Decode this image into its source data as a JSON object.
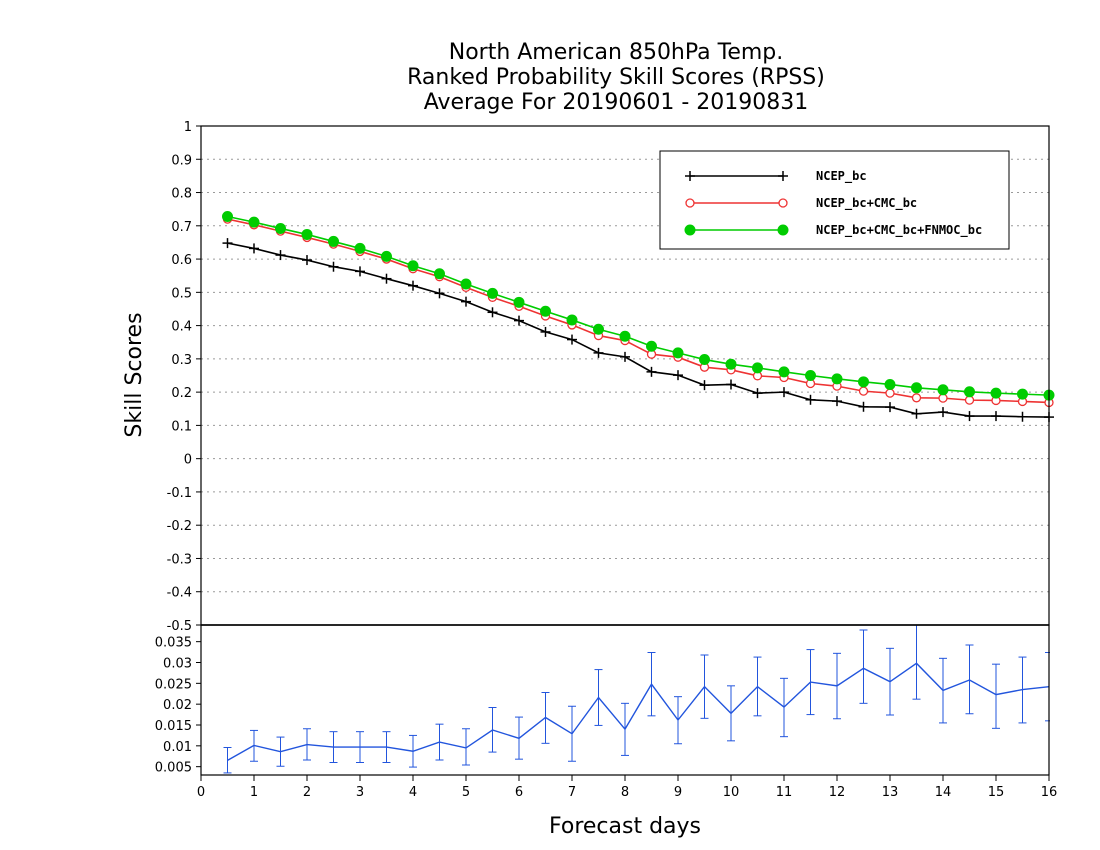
{
  "chart_data": [
    {
      "type": "line",
      "title_lines": [
        "North American 850hPa Temp.",
        "Ranked Probability Skill Scores (RPSS)",
        "Average For 20190601 - 20190831"
      ],
      "xlabel": "Forecast days",
      "ylabel": "Skill Scores",
      "xlim": [
        0,
        16
      ],
      "ylim": [
        -0.5,
        1
      ],
      "x_ticks": [
        "0",
        "1",
        "2",
        "3",
        "4",
        "5",
        "6",
        "7",
        "8",
        "9",
        "10",
        "11",
        "12",
        "13",
        "14",
        "15",
        "16"
      ],
      "y_ticks": [
        "-0.5",
        "-0.4",
        "-0.3",
        "-0.2",
        "-0.1",
        "0",
        "0.1",
        "0.2",
        "0.3",
        "0.4",
        "0.5",
        "0.6",
        "0.7",
        "0.8",
        "0.9",
        "1"
      ],
      "grid": true,
      "legend_position": "top-right",
      "x": [
        0.5,
        1,
        1.5,
        2,
        2.5,
        3,
        3.5,
        4,
        4.5,
        5,
        5.5,
        6,
        6.5,
        7,
        7.5,
        8,
        8.5,
        9,
        9.5,
        10,
        10.5,
        11,
        11.5,
        12,
        12.5,
        13,
        13.5,
        14,
        14.5,
        15,
        15.5,
        16
      ],
      "series": [
        {
          "name": "NCEP_bc",
          "color": "#000000",
          "marker": "plus",
          "values": [
            0.648,
            0.632,
            0.612,
            0.597,
            0.577,
            0.563,
            0.541,
            0.52,
            0.497,
            0.472,
            0.44,
            0.415,
            0.381,
            0.358,
            0.318,
            0.306,
            0.261,
            0.251,
            0.221,
            0.223,
            0.197,
            0.2,
            0.177,
            0.173,
            0.156,
            0.155,
            0.135,
            0.14,
            0.128,
            0.128,
            0.126,
            0.125
          ]
        },
        {
          "name": "NCEP_bc+CMC_bc",
          "color": "#ee3333",
          "marker": "open-circle",
          "values": [
            0.72,
            0.703,
            0.684,
            0.665,
            0.645,
            0.623,
            0.6,
            0.571,
            0.547,
            0.515,
            0.485,
            0.458,
            0.429,
            0.402,
            0.37,
            0.355,
            0.314,
            0.305,
            0.275,
            0.267,
            0.249,
            0.244,
            0.226,
            0.218,
            0.203,
            0.197,
            0.183,
            0.182,
            0.176,
            0.175,
            0.172,
            0.169
          ]
        },
        {
          "name": "NCEP_bc+CMC_bc+FNMOC_bc",
          "color": "#00cc00",
          "marker": "filled-circle",
          "values": [
            0.728,
            0.711,
            0.692,
            0.674,
            0.653,
            0.632,
            0.608,
            0.58,
            0.556,
            0.525,
            0.497,
            0.47,
            0.443,
            0.417,
            0.389,
            0.368,
            0.338,
            0.318,
            0.298,
            0.284,
            0.273,
            0.261,
            0.25,
            0.24,
            0.231,
            0.223,
            0.213,
            0.207,
            0.201,
            0.197,
            0.194,
            0.191
          ]
        }
      ]
    },
    {
      "type": "line",
      "xlim": [
        0,
        16
      ],
      "ylim": [
        0.003,
        0.039
      ],
      "y_ticks": [
        "0.005",
        "0.01",
        "0.015",
        "0.02",
        "0.025",
        "0.03",
        "0.035"
      ],
      "grid": false,
      "series": [
        {
          "color": "#2255dd",
          "x": [
            0.5,
            1,
            1.5,
            2,
            2.5,
            3,
            3.5,
            4,
            4.5,
            5,
            5.5,
            6,
            6.5,
            7,
            7.5,
            8,
            8.5,
            9,
            9.5,
            10,
            10.5,
            11,
            11.5,
            12,
            12.5,
            13,
            13.5,
            14,
            14.5,
            15,
            15.5,
            16
          ],
          "values": [
            0.0065,
            0.0101,
            0.0086,
            0.0103,
            0.0097,
            0.0097,
            0.0097,
            0.0087,
            0.0109,
            0.0095,
            0.0138,
            0.0118,
            0.0168,
            0.0129,
            0.0216,
            0.014,
            0.0248,
            0.0162,
            0.0242,
            0.0178,
            0.0242,
            0.0193,
            0.0253,
            0.0244,
            0.0286,
            0.0254,
            0.0298,
            0.0233,
            0.0258,
            0.0223,
            0.0235,
            0.0242
          ],
          "error_low": [
            0.0035,
            0.0063,
            0.0051,
            0.0066,
            0.006,
            0.006,
            0.006,
            0.0049,
            0.0066,
            0.0054,
            0.0085,
            0.0068,
            0.0106,
            0.0063,
            0.0149,
            0.0077,
            0.0172,
            0.0105,
            0.0166,
            0.0112,
            0.0172,
            0.0122,
            0.0175,
            0.0165,
            0.0202,
            0.0174,
            0.0212,
            0.0155,
            0.0177,
            0.0142,
            0.0155,
            0.016
          ],
          "error_high": [
            0.0096,
            0.0137,
            0.0121,
            0.0141,
            0.0134,
            0.0134,
            0.0134,
            0.0125,
            0.0152,
            0.0141,
            0.0192,
            0.0169,
            0.0228,
            0.0195,
            0.0283,
            0.0202,
            0.0324,
            0.0218,
            0.0318,
            0.0244,
            0.0313,
            0.0262,
            0.0331,
            0.0322,
            0.0378,
            0.0334,
            0.039,
            0.031,
            0.0342,
            0.0296,
            0.0313,
            0.0324
          ]
        }
      ]
    }
  ]
}
